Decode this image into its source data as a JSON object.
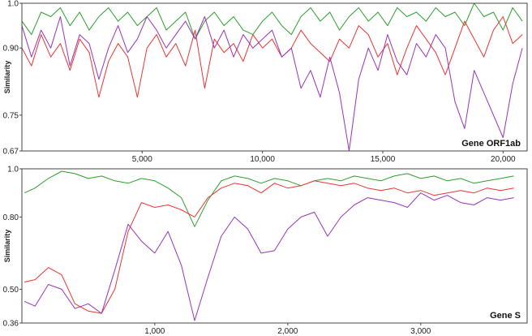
{
  "chart_data": [
    {
      "type": "line",
      "title": "Gene ORF1ab",
      "ylabel": "Similarity",
      "xlabel": "",
      "xlim": [
        1,
        21000
      ],
      "ylim": [
        0.67,
        1.0
      ],
      "y_ticks": [
        0.67,
        0.75,
        0.9,
        1.0
      ],
      "y_tick_labels": [
        "0.67",
        "0.75",
        "0.90",
        "1.0"
      ],
      "x_ticks": [
        5000,
        10000,
        15000,
        20000
      ],
      "x_tick_labels": [
        "5,000",
        "10,000",
        "15,000",
        "20,000"
      ],
      "grid": false,
      "legend": "none",
      "series": [
        {
          "color": "#2ca02c",
          "x": [
            1,
            400,
            800,
            1200,
            1600,
            2000,
            2400,
            2800,
            3200,
            3600,
            4000,
            4400,
            4800,
            5200,
            5600,
            6000,
            6400,
            6800,
            7200,
            7600,
            8000,
            8400,
            8800,
            9200,
            9600,
            10000,
            10400,
            10800,
            11200,
            11600,
            12000,
            12400,
            12800,
            13200,
            13600,
            14000,
            14400,
            14800,
            15200,
            15600,
            16000,
            16400,
            16800,
            17200,
            17600,
            18000,
            18400,
            18800,
            19200,
            19600,
            20000,
            20400,
            20800
          ],
          "y": [
            0.96,
            0.93,
            0.98,
            0.97,
            0.99,
            0.95,
            0.98,
            0.94,
            0.97,
            0.99,
            0.96,
            0.98,
            0.95,
            0.97,
            0.99,
            0.94,
            0.96,
            0.98,
            0.92,
            0.96,
            0.98,
            0.95,
            0.97,
            0.94,
            0.93,
            0.96,
            0.98,
            0.95,
            0.93,
            0.97,
            0.99,
            0.96,
            0.98,
            0.94,
            0.97,
            0.99,
            0.96,
            0.98,
            0.95,
            0.99,
            0.97,
            0.98,
            0.96,
            0.99,
            0.97,
            0.98,
            0.95,
            1.0,
            0.97,
            0.98,
            0.94,
            0.99,
            0.96
          ]
        },
        {
          "color": "#ee3333",
          "x": [
            1,
            400,
            800,
            1200,
            1600,
            2000,
            2400,
            2800,
            3200,
            3600,
            4000,
            4400,
            4800,
            5200,
            5600,
            6000,
            6400,
            6800,
            7200,
            7600,
            8000,
            8400,
            8800,
            9200,
            9600,
            10000,
            10400,
            10800,
            11200,
            11600,
            12000,
            12400,
            12800,
            13200,
            13600,
            14000,
            14400,
            14800,
            15200,
            15600,
            16000,
            16400,
            16800,
            17200,
            17600,
            18000,
            18400,
            18800,
            19200,
            19600,
            20000,
            20400,
            20800
          ],
          "y": [
            0.9,
            0.86,
            0.93,
            0.88,
            0.91,
            0.85,
            0.92,
            0.89,
            0.79,
            0.87,
            0.91,
            0.88,
            0.79,
            0.9,
            0.93,
            0.88,
            0.91,
            0.86,
            0.94,
            0.81,
            0.92,
            0.89,
            0.91,
            0.87,
            0.93,
            0.9,
            0.92,
            0.88,
            0.9,
            0.94,
            0.91,
            0.89,
            0.87,
            0.92,
            0.9,
            0.95,
            0.93,
            0.88,
            0.91,
            0.84,
            0.9,
            0.95,
            0.92,
            0.89,
            0.84,
            0.9,
            0.96,
            0.92,
            0.88,
            0.94,
            0.97,
            0.91,
            0.93
          ]
        },
        {
          "color": "#9933bb",
          "x": [
            1,
            400,
            800,
            1200,
            1600,
            2000,
            2400,
            2800,
            3200,
            3600,
            4000,
            4400,
            4800,
            5200,
            5600,
            6000,
            6400,
            6800,
            7200,
            7600,
            8000,
            8400,
            8800,
            9200,
            9600,
            10000,
            10400,
            10800,
            11200,
            11600,
            12000,
            12400,
            12800,
            13200,
            13600,
            14000,
            14400,
            14800,
            15200,
            15600,
            16000,
            16400,
            16800,
            17200,
            17600,
            18000,
            18400,
            18800,
            19200,
            19600,
            20000,
            20400,
            20800
          ],
          "y": [
            0.95,
            0.88,
            0.94,
            0.9,
            0.97,
            0.86,
            0.93,
            0.91,
            0.83,
            0.9,
            0.95,
            0.89,
            0.92,
            0.97,
            0.94,
            0.9,
            0.93,
            0.96,
            0.92,
            0.97,
            0.9,
            0.94,
            0.88,
            0.93,
            0.9,
            0.92,
            0.94,
            0.88,
            0.9,
            0.81,
            0.85,
            0.79,
            0.88,
            0.8,
            0.67,
            0.83,
            0.9,
            0.85,
            0.93,
            0.87,
            0.84,
            0.91,
            0.88,
            0.93,
            0.9,
            0.78,
            0.72,
            0.85,
            0.8,
            0.75,
            0.7,
            0.82,
            0.9
          ]
        }
      ]
    },
    {
      "type": "line",
      "title": "Gene S",
      "ylabel": "Similarity",
      "xlabel": "",
      "xlim": [
        1,
        3800
      ],
      "ylim": [
        0.36,
        1.0
      ],
      "y_ticks": [
        0.36,
        0.5,
        0.8,
        1.0
      ],
      "y_tick_labels": [
        "0.36",
        "0.50",
        "0.80",
        "1.0"
      ],
      "x_ticks": [
        1000,
        2000,
        3000
      ],
      "x_tick_labels": [
        "1,000",
        "2,000",
        "3,000"
      ],
      "grid": false,
      "legend": "none",
      "series": [
        {
          "color": "#2ca02c",
          "x": [
            20,
            100,
            200,
            300,
            400,
            500,
            600,
            700,
            800,
            900,
            1000,
            1100,
            1200,
            1300,
            1400,
            1500,
            1600,
            1700,
            1800,
            1900,
            2000,
            2100,
            2200,
            2300,
            2400,
            2500,
            2600,
            2700,
            2800,
            2900,
            3000,
            3100,
            3200,
            3300,
            3400,
            3500,
            3600,
            3700
          ],
          "y": [
            0.9,
            0.92,
            0.96,
            0.99,
            0.98,
            0.96,
            0.97,
            0.95,
            0.94,
            0.96,
            0.95,
            0.92,
            0.88,
            0.76,
            0.87,
            0.95,
            0.97,
            0.96,
            0.94,
            0.96,
            0.95,
            0.93,
            0.95,
            0.96,
            0.95,
            0.97,
            0.96,
            0.95,
            0.97,
            0.98,
            0.96,
            0.97,
            0.95,
            0.96,
            0.94,
            0.95,
            0.96,
            0.97
          ]
        },
        {
          "color": "#ee3333",
          "x": [
            20,
            100,
            200,
            300,
            400,
            500,
            600,
            700,
            800,
            900,
            1000,
            1100,
            1200,
            1300,
            1400,
            1500,
            1600,
            1700,
            1800,
            1900,
            2000,
            2100,
            2200,
            2300,
            2400,
            2500,
            2600,
            2700,
            2800,
            2900,
            3000,
            3100,
            3200,
            3300,
            3400,
            3500,
            3600,
            3700
          ],
          "y": [
            0.53,
            0.54,
            0.59,
            0.56,
            0.44,
            0.41,
            0.4,
            0.5,
            0.74,
            0.86,
            0.84,
            0.85,
            0.83,
            0.8,
            0.88,
            0.92,
            0.94,
            0.93,
            0.9,
            0.94,
            0.92,
            0.93,
            0.95,
            0.94,
            0.93,
            0.94,
            0.92,
            0.91,
            0.92,
            0.9,
            0.91,
            0.89,
            0.9,
            0.91,
            0.9,
            0.92,
            0.91,
            0.92
          ]
        },
        {
          "color": "#9933bb",
          "x": [
            20,
            100,
            200,
            300,
            400,
            500,
            600,
            700,
            800,
            900,
            1000,
            1100,
            1200,
            1300,
            1400,
            1500,
            1600,
            1700,
            1800,
            1900,
            2000,
            2100,
            2200,
            2300,
            2400,
            2500,
            2600,
            2700,
            2800,
            2900,
            3000,
            3100,
            3200,
            3300,
            3400,
            3500,
            3600,
            3700
          ],
          "y": [
            0.45,
            0.43,
            0.52,
            0.5,
            0.42,
            0.44,
            0.4,
            0.58,
            0.77,
            0.7,
            0.65,
            0.74,
            0.6,
            0.37,
            0.55,
            0.72,
            0.8,
            0.75,
            0.65,
            0.66,
            0.75,
            0.8,
            0.82,
            0.72,
            0.8,
            0.85,
            0.88,
            0.87,
            0.86,
            0.84,
            0.9,
            0.87,
            0.89,
            0.86,
            0.85,
            0.88,
            0.87,
            0.88
          ]
        }
      ]
    }
  ]
}
